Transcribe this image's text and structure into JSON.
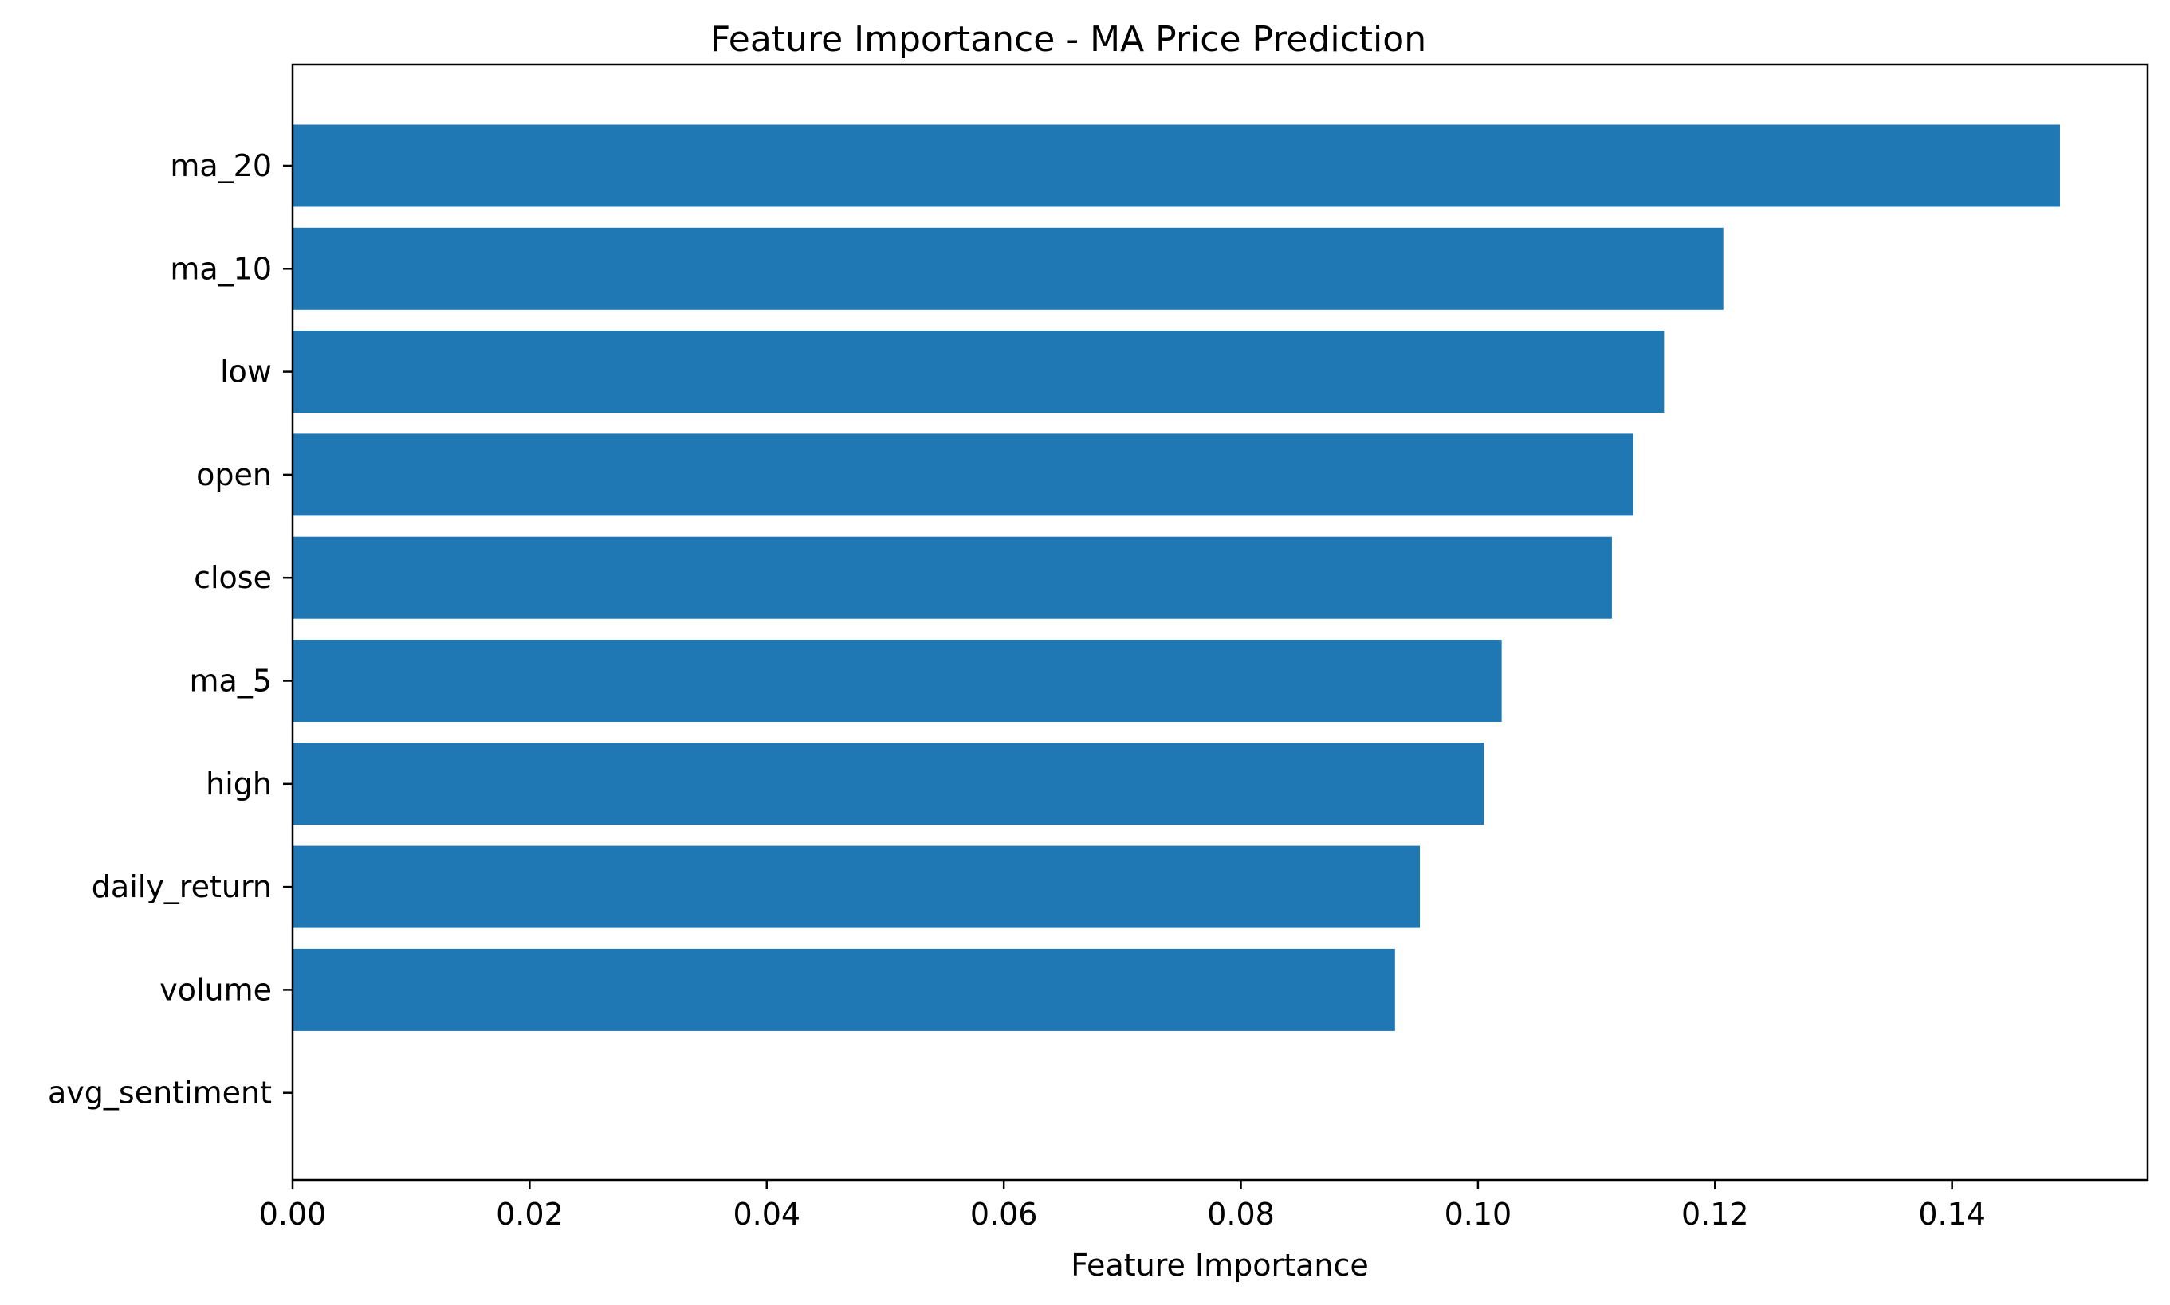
{
  "chart_data": {
    "type": "bar",
    "orientation": "horizontal",
    "title": "Feature Importance - MA Price Prediction",
    "xlabel": "Feature Importance",
    "ylabel": "",
    "categories": [
      "ma_20",
      "ma_10",
      "low",
      "open",
      "close",
      "ma_5",
      "high",
      "daily_return",
      "volume",
      "avg_sentiment"
    ],
    "values": [
      0.1491,
      0.1207,
      0.1157,
      0.1131,
      0.1113,
      0.102,
      0.1005,
      0.0951,
      0.093,
      0.0
    ],
    "xlim": [
      0.0,
      0.1565
    ],
    "xticks": [
      0.0,
      0.02,
      0.04,
      0.06,
      0.08,
      0.1,
      0.12,
      0.14
    ],
    "xtick_labels": [
      "0.00",
      "0.02",
      "0.04",
      "0.06",
      "0.08",
      "0.10",
      "0.12",
      "0.14"
    ],
    "bar_color": "#1f77b4",
    "grid": false,
    "legend": "none"
  }
}
